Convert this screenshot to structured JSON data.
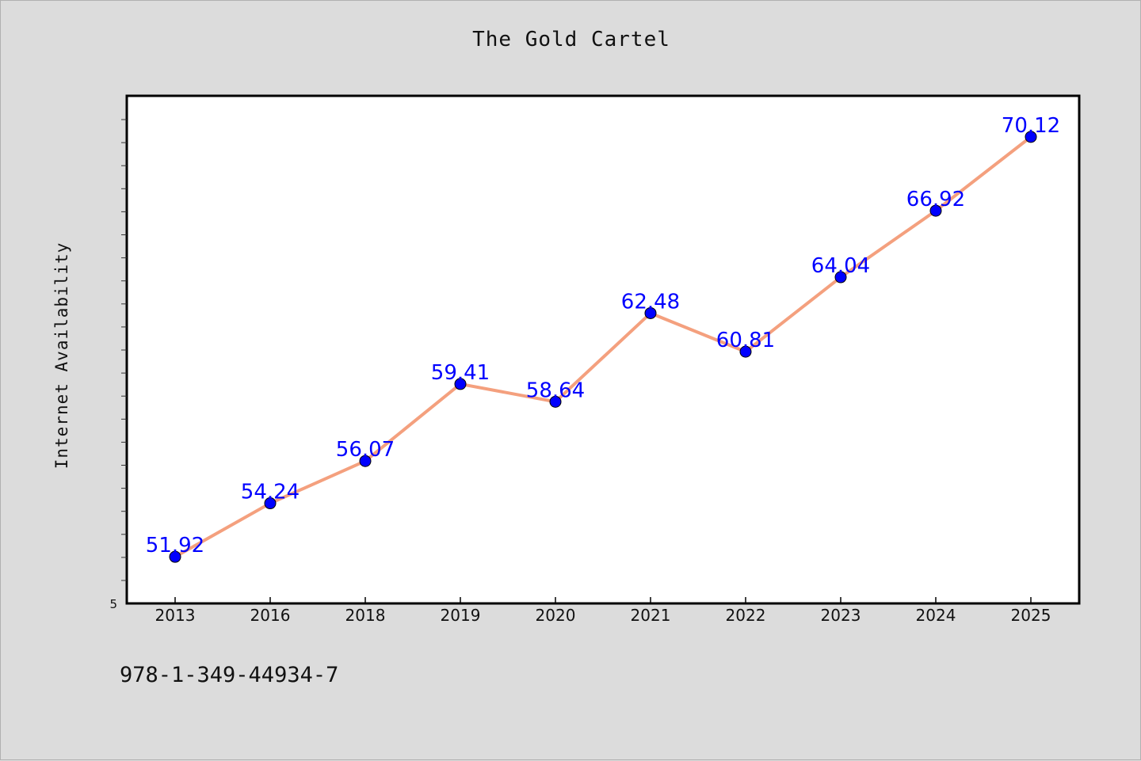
{
  "title": "The Gold Cartel",
  "footer_text": "978-1-349-44934-7",
  "colors": {
    "background": "#dcdcdc",
    "plot_background": "#ffffff",
    "line": "#f4a07e",
    "marker": "#0000ff",
    "label": "#0000ff"
  },
  "chart_data": {
    "type": "line",
    "title": "The Gold Cartel",
    "xlabel": "",
    "ylabel": "Internet Availability",
    "categories": [
      "2013",
      "2016",
      "2018",
      "2019",
      "2020",
      "2021",
      "2022",
      "2023",
      "2024",
      "2025"
    ],
    "series": [
      {
        "values": [
          51.92,
          54.24,
          56.07,
          59.41,
          58.64,
          62.48,
          60.81,
          64.04,
          66.92,
          70.12
        ]
      }
    ],
    "data_labels": [
      "51.92",
      "54.24",
      "56.07",
      "59.41",
      "58.64",
      "62.48",
      "60.81",
      "64.04",
      "66.92",
      "70.12"
    ],
    "y_tick_label": "5",
    "ylim": [
      49.9,
      71.9
    ],
    "grid": false,
    "legend": "none"
  }
}
